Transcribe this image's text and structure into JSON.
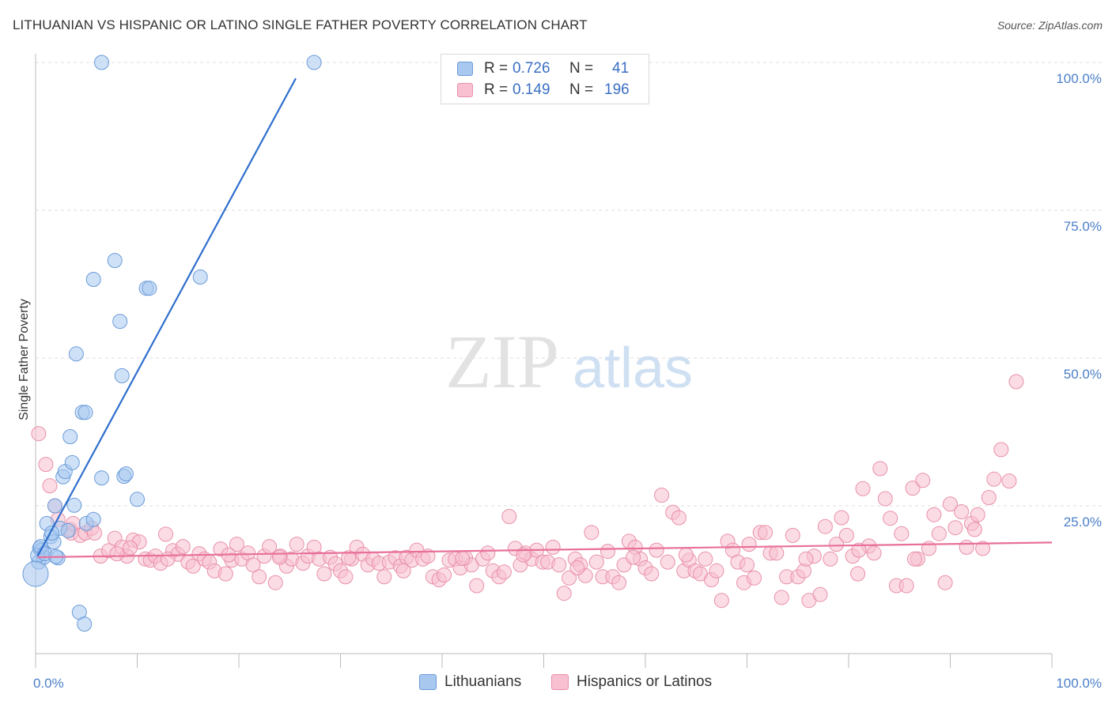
{
  "title": "LITHUANIAN VS HISPANIC OR LATINO SINGLE FATHER POVERTY CORRELATION CHART",
  "source": "Source: ZipAtlas.com",
  "watermark": {
    "zip": "ZIP",
    "atlas": "atlas"
  },
  "legend": {
    "rows": [
      {
        "r_label": "R =",
        "r_value": "0.726",
        "n_label": "N =",
        "n_value": "41",
        "color": "#a8c8f0",
        "border": "#6a9bd8"
      },
      {
        "r_label": "R =",
        "r_value": "0.149",
        "n_label": "N =",
        "n_value": "196",
        "color": "#f8c0d0",
        "border": "#e890a8"
      }
    ]
  },
  "bottom_legend": [
    {
      "label": "Lithuanians",
      "color": "#a8c8f0",
      "border": "#6a9bd8"
    },
    {
      "label": "Hispanics or Latinos",
      "color": "#f8c0d0",
      "border": "#e890a8"
    }
  ],
  "chart_data": {
    "type": "scatter",
    "title": "LITHUANIAN VS HISPANIC OR LATINO SINGLE FATHER POVERTY CORRELATION CHART",
    "xlabel": "",
    "ylabel": "Single Father Poverty",
    "xlim": [
      0,
      100
    ],
    "ylim": [
      0,
      100
    ],
    "x_tick_labels": [
      "0.0%",
      "100.0%"
    ],
    "y_ticks": [
      25,
      50,
      75,
      100
    ],
    "y_tick_labels": [
      "25.0%",
      "50.0%",
      "75.0%",
      "100.0%"
    ],
    "grid": true,
    "series": [
      {
        "name": "Lithuanians",
        "color": "#a8c8f0",
        "stroke": "#6a9bd8",
        "line_color": "#2f6fcd",
        "trend": {
          "x": [
            0.2,
            25.6
          ],
          "y": [
            16.5,
            97.3
          ]
        },
        "points": [
          [
            0.3,
            15.5
          ],
          [
            0.4,
            17.8
          ],
          [
            0.6,
            17.5
          ],
          [
            0.8,
            16.3
          ],
          [
            1.1,
            22.0
          ],
          [
            1.5,
            19.8
          ],
          [
            1.8,
            18.9
          ],
          [
            1.9,
            25.0
          ],
          [
            2.2,
            16.2
          ],
          [
            2.4,
            21.2
          ],
          [
            2.7,
            29.9
          ],
          [
            2.9,
            30.8
          ],
          [
            3.2,
            20.8
          ],
          [
            3.4,
            36.7
          ],
          [
            3.6,
            32.3
          ],
          [
            3.8,
            25.1
          ],
          [
            4.0,
            50.7
          ],
          [
            4.3,
            7.0
          ],
          [
            4.6,
            40.8
          ],
          [
            4.8,
            5.0
          ],
          [
            4.9,
            40.8
          ],
          [
            5.0,
            22.0
          ],
          [
            5.7,
            22.7
          ],
          [
            5.7,
            63.3
          ],
          [
            6.5,
            100.0
          ],
          [
            6.5,
            29.7
          ],
          [
            7.8,
            66.5
          ],
          [
            8.3,
            56.2
          ],
          [
            8.5,
            47.0
          ],
          [
            8.7,
            30.0
          ],
          [
            8.9,
            30.4
          ],
          [
            10.0,
            26.1
          ],
          [
            10.9,
            61.8
          ],
          [
            11.2,
            61.8
          ],
          [
            16.2,
            63.7
          ],
          [
            27.4,
            100.0
          ],
          [
            0.2,
            16.6
          ],
          [
            0.5,
            18.1
          ],
          [
            0.9,
            16.9
          ],
          [
            1.6,
            20.4
          ],
          [
            2.0,
            16.4
          ]
        ]
      },
      {
        "name": "Hispanics or Latinos",
        "color": "#f8c0d0",
        "stroke": "#e890a8",
        "line_color": "#e8709a",
        "trend": {
          "x": [
            0.2,
            100
          ],
          "y": [
            16.3,
            18.8
          ]
        },
        "points": [
          [
            0.3,
            37.2
          ],
          [
            1.0,
            32.0
          ],
          [
            1.4,
            28.4
          ],
          [
            1.9,
            25.0
          ],
          [
            2.2,
            22.7
          ],
          [
            3.4,
            21.0
          ],
          [
            3.5,
            20.4
          ],
          [
            3.7,
            22.0
          ],
          [
            4.4,
            20.0
          ],
          [
            4.9,
            20.4
          ],
          [
            5.5,
            21.2
          ],
          [
            5.8,
            20.4
          ],
          [
            6.4,
            16.5
          ],
          [
            7.2,
            17.4
          ],
          [
            7.8,
            19.5
          ],
          [
            8.5,
            18.0
          ],
          [
            9.0,
            16.5
          ],
          [
            9.6,
            19.2
          ],
          [
            10.2,
            18.9
          ],
          [
            10.8,
            16.0
          ],
          [
            11.3,
            15.8
          ],
          [
            11.8,
            16.5
          ],
          [
            12.3,
            15.3
          ],
          [
            12.8,
            20.2
          ],
          [
            13.5,
            17.4
          ],
          [
            14.0,
            16.8
          ],
          [
            14.5,
            18.1
          ],
          [
            15.0,
            15.5
          ],
          [
            15.5,
            14.8
          ],
          [
            16.1,
            16.9
          ],
          [
            16.6,
            16.0
          ],
          [
            17.1,
            15.5
          ],
          [
            17.6,
            14.0
          ],
          [
            18.2,
            17.7
          ],
          [
            18.7,
            13.5
          ],
          [
            19.3,
            15.8
          ],
          [
            19.8,
            18.5
          ],
          [
            20.3,
            16.0
          ],
          [
            20.9,
            17.0
          ],
          [
            21.4,
            15.0
          ],
          [
            22.0,
            13.0
          ],
          [
            22.5,
            16.5
          ],
          [
            23.0,
            18.1
          ],
          [
            23.6,
            12.0
          ],
          [
            24.1,
            16.5
          ],
          [
            24.7,
            14.8
          ],
          [
            25.2,
            16.0
          ],
          [
            25.7,
            18.5
          ],
          [
            26.3,
            15.3
          ],
          [
            26.8,
            16.5
          ],
          [
            27.4,
            18.0
          ],
          [
            27.9,
            16.0
          ],
          [
            28.4,
            13.5
          ],
          [
            29.0,
            16.3
          ],
          [
            29.5,
            15.2
          ],
          [
            30.0,
            14.0
          ],
          [
            30.5,
            13.0
          ],
          [
            31.1,
            16.0
          ],
          [
            31.6,
            18.0
          ],
          [
            32.2,
            16.8
          ],
          [
            32.7,
            15.0
          ],
          [
            33.2,
            16.0
          ],
          [
            33.8,
            15.3
          ],
          [
            34.3,
            13.0
          ],
          [
            34.8,
            15.5
          ],
          [
            35.4,
            16.2
          ],
          [
            35.9,
            14.8
          ],
          [
            36.5,
            16.3
          ],
          [
            37.0,
            15.8
          ],
          [
            37.5,
            17.5
          ],
          [
            38.1,
            16.0
          ],
          [
            38.6,
            16.5
          ],
          [
            39.1,
            13.0
          ],
          [
            39.7,
            12.5
          ],
          [
            40.2,
            13.3
          ],
          [
            40.7,
            15.8
          ],
          [
            41.3,
            16.0
          ],
          [
            41.8,
            14.5
          ],
          [
            42.3,
            16.2
          ],
          [
            42.9,
            15.0
          ],
          [
            43.4,
            11.5
          ],
          [
            44.0,
            16.0
          ],
          [
            44.5,
            17.0
          ],
          [
            45.0,
            14.0
          ],
          [
            45.6,
            13.0
          ],
          [
            46.1,
            13.8
          ],
          [
            46.6,
            23.2
          ],
          [
            47.2,
            17.8
          ],
          [
            47.7,
            15.0
          ],
          [
            48.2,
            17.0
          ],
          [
            48.8,
            16.0
          ],
          [
            49.3,
            17.5
          ],
          [
            49.9,
            15.5
          ],
          [
            50.4,
            15.5
          ],
          [
            50.9,
            18.0
          ],
          [
            51.5,
            15.0
          ],
          [
            52.0,
            10.2
          ],
          [
            52.5,
            12.8
          ],
          [
            53.1,
            16.0
          ],
          [
            53.6,
            15.0
          ],
          [
            54.1,
            13.2
          ],
          [
            54.7,
            20.5
          ],
          [
            55.2,
            15.5
          ],
          [
            55.8,
            13.0
          ],
          [
            56.3,
            17.3
          ],
          [
            56.8,
            13.0
          ],
          [
            57.4,
            12.0
          ],
          [
            57.9,
            15.0
          ],
          [
            58.4,
            19.0
          ],
          [
            59.0,
            18.0
          ],
          [
            59.5,
            16.0
          ],
          [
            60.0,
            14.5
          ],
          [
            60.6,
            13.5
          ],
          [
            61.1,
            17.5
          ],
          [
            61.6,
            26.8
          ],
          [
            62.2,
            15.5
          ],
          [
            62.7,
            23.9
          ],
          [
            63.3,
            23.0
          ],
          [
            63.8,
            14.0
          ],
          [
            64.3,
            15.8
          ],
          [
            64.9,
            14.0
          ],
          [
            65.4,
            13.5
          ],
          [
            65.9,
            16.0
          ],
          [
            66.5,
            12.5
          ],
          [
            67.0,
            14.0
          ],
          [
            67.5,
            9.0
          ],
          [
            68.1,
            19.0
          ],
          [
            68.6,
            17.5
          ],
          [
            69.1,
            15.5
          ],
          [
            69.7,
            12.0
          ],
          [
            70.2,
            18.5
          ],
          [
            70.7,
            12.8
          ],
          [
            71.3,
            20.5
          ],
          [
            71.8,
            20.5
          ],
          [
            72.3,
            17.0
          ],
          [
            72.9,
            17.0
          ],
          [
            73.4,
            9.5
          ],
          [
            73.9,
            13.0
          ],
          [
            74.5,
            20.0
          ],
          [
            75.0,
            13.0
          ],
          [
            75.6,
            14.0
          ],
          [
            76.1,
            9.0
          ],
          [
            76.6,
            16.5
          ],
          [
            77.2,
            10.0
          ],
          [
            77.7,
            21.5
          ],
          [
            78.2,
            16.0
          ],
          [
            78.8,
            18.5
          ],
          [
            79.3,
            23.0
          ],
          [
            79.8,
            20.0
          ],
          [
            80.4,
            16.5
          ],
          [
            80.9,
            13.5
          ],
          [
            81.4,
            27.9
          ],
          [
            82.0,
            18.2
          ],
          [
            82.5,
            17.0
          ],
          [
            83.1,
            31.3
          ],
          [
            83.6,
            26.2
          ],
          [
            84.1,
            22.9
          ],
          [
            84.7,
            11.5
          ],
          [
            85.2,
            20.3
          ],
          [
            85.7,
            11.5
          ],
          [
            86.3,
            28.0
          ],
          [
            86.8,
            16.0
          ],
          [
            87.3,
            29.3
          ],
          [
            87.9,
            17.8
          ],
          [
            88.4,
            23.5
          ],
          [
            88.9,
            20.3
          ],
          [
            89.5,
            12.0
          ],
          [
            90.0,
            25.3
          ],
          [
            90.5,
            21.3
          ],
          [
            91.1,
            24.0
          ],
          [
            91.6,
            18.0
          ],
          [
            92.1,
            22.0
          ],
          [
            92.7,
            23.5
          ],
          [
            93.2,
            17.8
          ],
          [
            93.8,
            26.4
          ],
          [
            94.3,
            29.5
          ],
          [
            95.0,
            34.5
          ],
          [
            95.8,
            29.2
          ],
          [
            96.5,
            46.0
          ],
          [
            8.0,
            16.9
          ],
          [
            9.3,
            17.9
          ],
          [
            13.0,
            16.0
          ],
          [
            19.0,
            16.7
          ],
          [
            24.0,
            16.3
          ],
          [
            30.8,
            16.2
          ],
          [
            36.2,
            14.0
          ],
          [
            42.0,
            16.1
          ],
          [
            48.0,
            16.7
          ],
          [
            53.3,
            14.5
          ],
          [
            58.8,
            16.3
          ],
          [
            64.0,
            16.7
          ],
          [
            70.0,
            15.0
          ],
          [
            75.8,
            16.0
          ],
          [
            81.0,
            17.5
          ],
          [
            86.5,
            16.0
          ],
          [
            92.4,
            21.0
          ]
        ]
      }
    ]
  }
}
